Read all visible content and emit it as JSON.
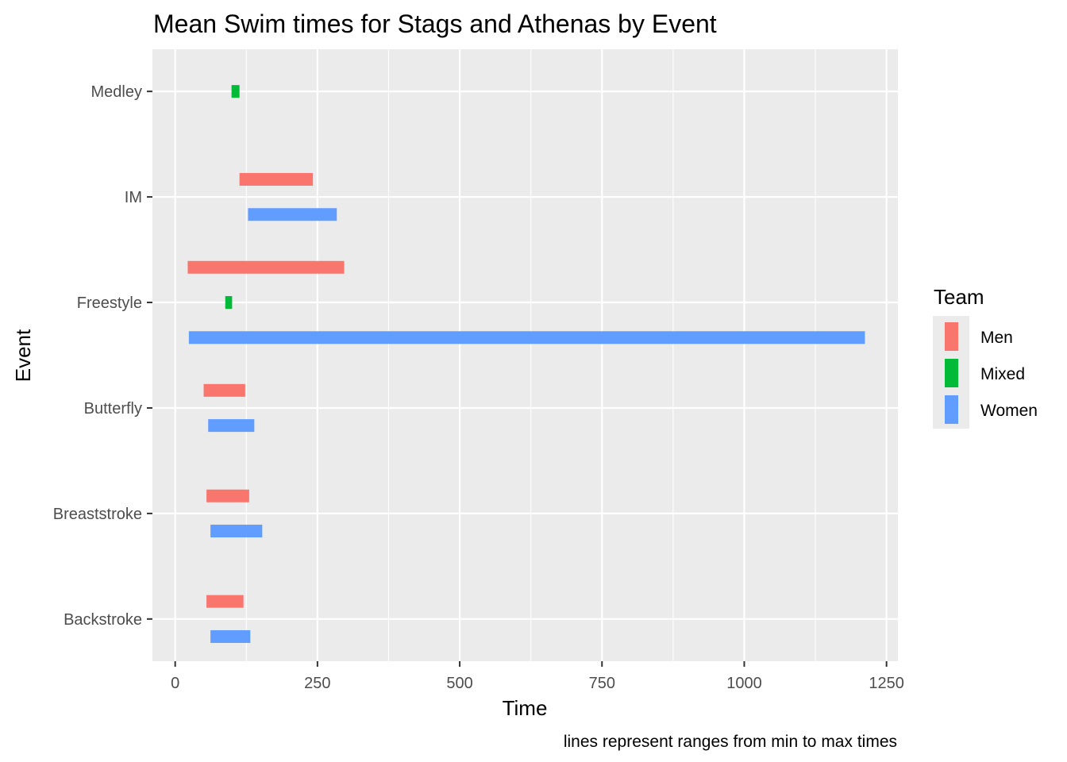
{
  "chart_data": {
    "type": "bar",
    "orientation": "horizontal-range",
    "title": "Mean Swim times for Stags and Athenas by Event",
    "xlabel": "Time",
    "ylabel": "Event",
    "caption": "lines represent ranges from min to max times",
    "xlim": [
      -40,
      1270
    ],
    "xticks": [
      0,
      250,
      500,
      750,
      1000,
      1250
    ],
    "xtick_labels": [
      "0",
      "250",
      "500",
      "750",
      "1000",
      "1250"
    ],
    "categories": [
      "Backstroke",
      "Breaststroke",
      "Butterfly",
      "Freestyle",
      "IM",
      "Medley"
    ],
    "grid": true,
    "legend": {
      "title": "Team",
      "position": "right",
      "entries": [
        "Men",
        "Mixed",
        "Women"
      ]
    },
    "colors": {
      "Men": "#F8766D",
      "Mixed": "#00BA38",
      "Women": "#619CFF"
    },
    "series": [
      {
        "name": "Men",
        "ranges": [
          {
            "event": "Backstroke",
            "min": 55,
            "max": 120
          },
          {
            "event": "Breaststroke",
            "min": 55,
            "max": 130
          },
          {
            "event": "Butterfly",
            "min": 50,
            "max": 123
          },
          {
            "event": "Freestyle",
            "min": 22,
            "max": 297
          },
          {
            "event": "IM",
            "min": 113,
            "max": 242
          }
        ]
      },
      {
        "name": "Mixed",
        "ranges": [
          {
            "event": "Freestyle",
            "min": 88,
            "max": 100
          },
          {
            "event": "Medley",
            "min": 99,
            "max": 113
          }
        ]
      },
      {
        "name": "Women",
        "ranges": [
          {
            "event": "Backstroke",
            "min": 62,
            "max": 132
          },
          {
            "event": "Breaststroke",
            "min": 62,
            "max": 153
          },
          {
            "event": "Butterfly",
            "min": 58,
            "max": 139
          },
          {
            "event": "Freestyle",
            "min": 24,
            "max": 1212
          },
          {
            "event": "IM",
            "min": 128,
            "max": 284
          }
        ]
      }
    ]
  }
}
